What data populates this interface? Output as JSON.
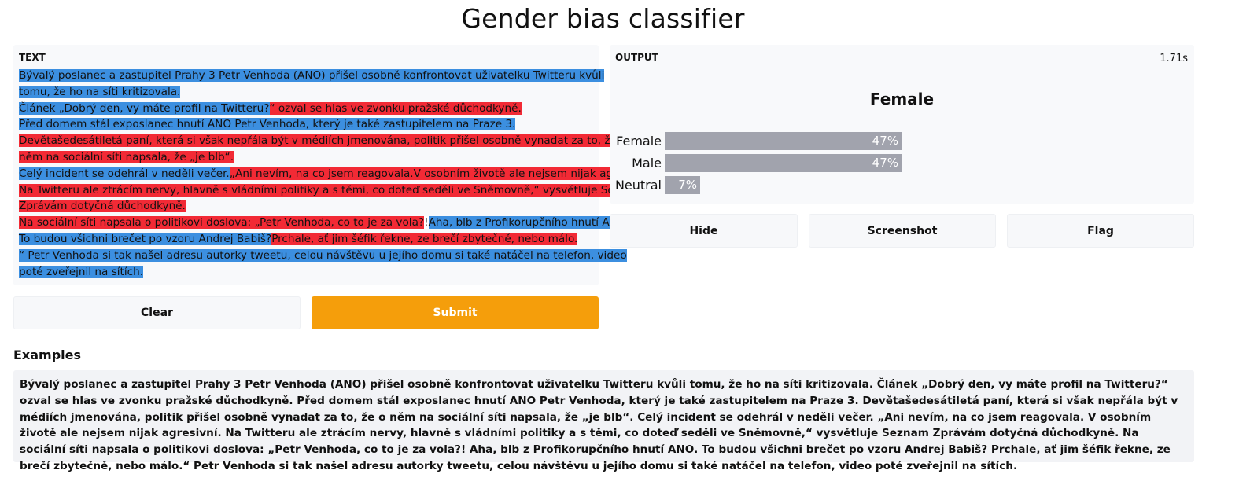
{
  "app": {
    "title": "Gender bias classifier"
  },
  "input": {
    "label": "TEXT",
    "lines": [
      [
        {
          "text": "Bývalý poslanec a zastupitel Prahy 3 Petr Venhoda (ANO) přišel osobně konfrontovat uživatelku Twitteru kvůli",
          "color": "blue"
        }
      ],
      [
        {
          "text": "tomu, že ho na síti kritizovala.",
          "color": "blue"
        }
      ],
      [
        {
          "text": "Článek „Dobrý den, vy máte profil na Twitteru?",
          "color": "blue"
        },
        {
          "text": "“ ozval se hlas ve zvonku pražské důchodkyně.",
          "color": "red"
        }
      ],
      [
        {
          "text": "Před domem stál exposlanec hnutí ANO Petr Venhoda, který je také zastupitelem na Praze 3.",
          "color": "blue"
        }
      ],
      [
        {
          "text": "Devětašedesátiletá paní, která si však nepřála být v médiích jmenována, politik přišel osobně vynadat za to, že o",
          "color": "red"
        }
      ],
      [
        {
          "text": "něm na sociální síti napsala, že „je blb“.",
          "color": "red"
        }
      ],
      [
        {
          "text": "Celý incident se odehrál v neděli večer.",
          "color": "blue"
        },
        {
          "text": "„Ani nevím, na co jsem reagovala.V osobním životě ale nejsem nijak agresivní.",
          "color": "red"
        }
      ],
      [
        {
          "text": "Na Twitteru ale ztrácím nervy, hlavně s vládními politiky a s těmi, co doteď seděli ve Sněmovně,“ vysvětluje Seznam",
          "color": "red"
        }
      ],
      [
        {
          "text": "Zprávám dotyčná důchodkyně.",
          "color": "red"
        }
      ],
      [
        {
          "text": "Na sociální síti napsala o politikovi doslova: „Petr Venhoda, co to je za vola?",
          "color": "red"
        },
        {
          "text": "!",
          "color": "white"
        },
        {
          "text": "Aha, blb z Profikorupčního hnutí ANO.",
          "color": "blue"
        }
      ],
      [
        {
          "text": "To budou všichni brečet po vzoru Andrej Babiš?",
          "color": "blue"
        },
        {
          "text": "Prchale, ať jim šéfik řekne, ze brečí zbytečně, nebo málo.",
          "color": "red"
        }
      ],
      [
        {
          "text": "“ Petr Venhoda si tak našel adresu autorky tweetu, celou návštěvu u jejího domu si také natáčel na telefon, video",
          "color": "blue"
        }
      ],
      [
        {
          "text": "poté zveřejnil na sítích.",
          "color": "blue"
        }
      ]
    ]
  },
  "buttons": {
    "clear": "Clear",
    "submit": "Submit",
    "hide": "Hide",
    "screenshot": "Screenshot",
    "flag": "Flag"
  },
  "output": {
    "label": "OUTPUT",
    "time": "1.71s",
    "top_label": "Female",
    "confidences": [
      {
        "label": "Female",
        "value": 0.47,
        "display": "47%"
      },
      {
        "label": "Male",
        "value": 0.47,
        "display": "47%"
      },
      {
        "label": "Neutral",
        "value": 0.07,
        "display": "7%"
      }
    ]
  },
  "examples": {
    "heading": "Examples",
    "items": [
      "Bývalý poslanec a zastupitel Prahy 3 Petr Venhoda (ANO) přišel osobně konfrontovat uživatelku Twitteru kvůli tomu, že ho na síti kritizovala. Článek „Dobrý den, vy máte profil na Twitteru?“ ozval se hlas ve zvonku pražské důchodkyně. Před domem stál exposlanec hnutí ANO Petr Venhoda, který je také zastupitelem na Praze 3. Devětašedesátiletá paní, která si však nepřála být v médiích jmenována, politik přišel osobně vynadat za to, že o něm na sociální síti napsala, že „je blb“. Celý incident se odehrál v neděli večer. „Ani nevím, na co jsem reagovala. V osobním životě ale nejsem nijak agresivní. Na Twitteru ale ztrácím nervy, hlavně s vládními politiky a s těmi, co doteď seděli ve Sněmovně,“ vysvětluje Seznam Zprávám dotyčná důchodkyně. Na sociální síti napsala o politikovi doslova: „Petr Venhoda, co to je za vola?! Aha, blb z Profikorupčního hnutí ANO. To budou všichni brečet po vzoru Andrej Babiš? Prchale, ať jim šéfik řekne, ze brečí zbytečně, nebo málo.“ Petr Venhoda si tak našel adresu autorky tweetu, celou návštěvu u jejího domu si také natáčel na telefon, video poté zveřejnil na sítích."
    ]
  },
  "colors": {
    "blue_highlight": "#3c8fe0",
    "red_highlight": "#f22a35",
    "submit": "#f59e0b",
    "bar": "#a1a3ad"
  }
}
